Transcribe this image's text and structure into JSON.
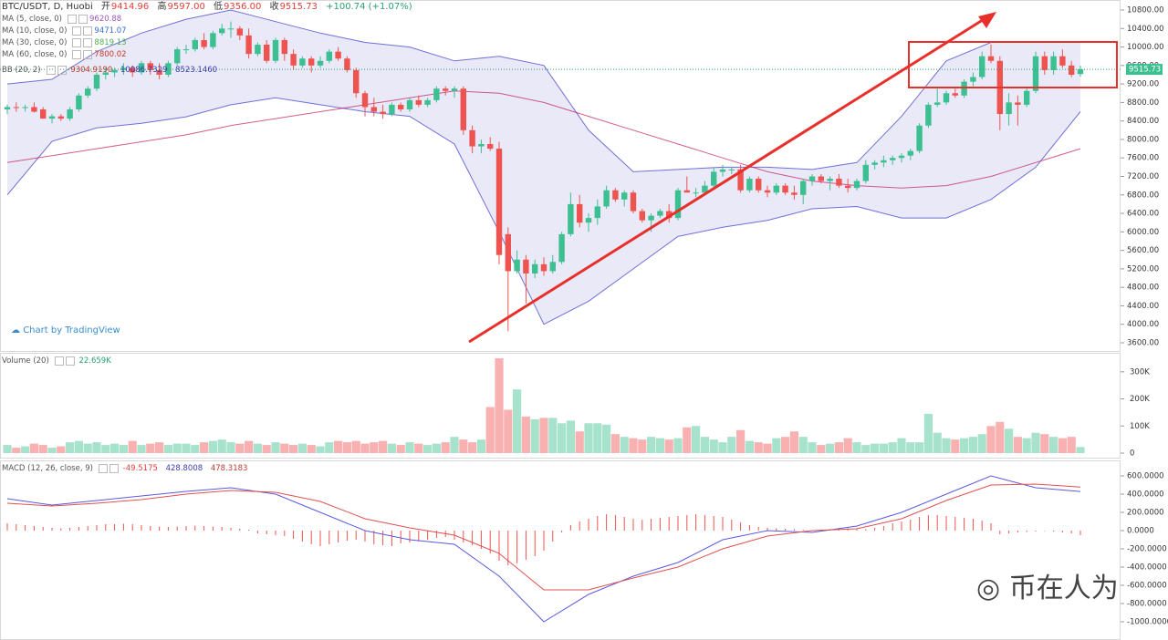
{
  "chart_data": {
    "type": "candlestick",
    "title": "BTC/USDT, D, Huobi",
    "ohlc_header": {
      "open_label": "开",
      "open": "9414.96",
      "high_label": "高",
      "high": "9597.00",
      "low_label": "低",
      "low": "9356.00",
      "close_label": "收",
      "close": "9515.73",
      "change": "+100.74 (+1.07%)"
    },
    "legend": [
      {
        "name": "MA (5, close, 0)",
        "value": "9620.88",
        "color": "#9b59b6"
      },
      {
        "name": "MA (10, close, 0)",
        "value": "9471.07",
        "color": "#3b6fd6"
      },
      {
        "name": "MA (30, close, 0)",
        "value": "8819.13",
        "color": "#4caf50"
      },
      {
        "name": "MA (60, close, 0)",
        "value": "7800.02",
        "color": "#c0392b"
      }
    ],
    "bb_legend": {
      "name": "BB (20, 2)",
      "basis": "9304.9190",
      "upper": "10086.7329",
      "lower": "8523.1460"
    },
    "watermark_left": "Chart by TradingView",
    "watermark_right": "币在人为",
    "up_color": "#3cbf91",
    "down_color": "#ef5350",
    "ylim": [
      3600,
      10800
    ],
    "yticks": [
      {
        "value": 3600,
        "label": "3600.00"
      },
      {
        "value": 4000,
        "label": "4000.00"
      },
      {
        "value": 4400,
        "label": "4400.00"
      },
      {
        "value": 4800,
        "label": "4800.00"
      },
      {
        "value": 5200,
        "label": "5200.00"
      },
      {
        "value": 5600,
        "label": "5600.00"
      },
      {
        "value": 6000,
        "label": "6000.00"
      },
      {
        "value": 6400,
        "label": "6400.00"
      },
      {
        "value": 6800,
        "label": "6800.00"
      },
      {
        "value": 7200,
        "label": "7200.00"
      },
      {
        "value": 7600,
        "label": "7600.00"
      },
      {
        "value": 8000,
        "label": "8000.00"
      },
      {
        "value": 8400,
        "label": "8400.00"
      },
      {
        "value": 8800,
        "label": "8800.00"
      },
      {
        "value": 9200,
        "label": "9200.00"
      },
      {
        "value": 9600,
        "label": "9600.00"
      },
      {
        "value": 10000,
        "label": "10000.00"
      },
      {
        "value": 10400,
        "label": "10400.00"
      },
      {
        "value": 10800,
        "label": "10800.00"
      }
    ],
    "last_price": {
      "value": 9515.73,
      "label": "9515.73"
    },
    "candles": [
      [
        8650,
        8750,
        8550,
        8700
      ],
      [
        8700,
        8800,
        8600,
        8680
      ],
      [
        8680,
        8750,
        8600,
        8700
      ],
      [
        8700,
        8800,
        8580,
        8600
      ],
      [
        8650,
        8700,
        8450,
        8450
      ],
      [
        8450,
        8550,
        8350,
        8500
      ],
      [
        8500,
        8550,
        8400,
        8450
      ],
      [
        8450,
        8700,
        8400,
        8650
      ],
      [
        8650,
        9000,
        8600,
        8950
      ],
      [
        8950,
        9150,
        8900,
        9100
      ],
      [
        9100,
        9450,
        9050,
        9400
      ],
      [
        9400,
        9550,
        9300,
        9450
      ],
      [
        9450,
        9550,
        9350,
        9500
      ],
      [
        9500,
        9650,
        9400,
        9550
      ],
      [
        9550,
        9600,
        9350,
        9450
      ],
      [
        9450,
        9700,
        9400,
        9650
      ],
      [
        9650,
        9700,
        9400,
        9500
      ],
      [
        9500,
        9650,
        9300,
        9400
      ],
      [
        9400,
        9700,
        9350,
        9650
      ],
      [
        9650,
        10000,
        9600,
        9950
      ],
      [
        9950,
        10050,
        9850,
        9950
      ],
      [
        9950,
        10200,
        9900,
        10150
      ],
      [
        10150,
        10300,
        9950,
        10000
      ],
      [
        10000,
        10350,
        9950,
        10300
      ],
      [
        10300,
        10500,
        10250,
        10400
      ],
      [
        10400,
        10550,
        10200,
        10400
      ],
      [
        10400,
        10450,
        10150,
        10250
      ],
      [
        10250,
        10400,
        9750,
        9850
      ],
      [
        9850,
        10100,
        9800,
        10050
      ],
      [
        10050,
        10150,
        9650,
        9700
      ],
      [
        9700,
        10200,
        9650,
        10150
      ],
      [
        10150,
        10200,
        9700,
        9850
      ],
      [
        9850,
        9950,
        9500,
        9600
      ],
      [
        9600,
        9800,
        9550,
        9750
      ],
      [
        9750,
        9800,
        9450,
        9600
      ],
      [
        9600,
        9800,
        9550,
        9700
      ],
      [
        9700,
        9950,
        9650,
        9900
      ],
      [
        9900,
        10000,
        9700,
        9750
      ],
      [
        9750,
        9800,
        9450,
        9500
      ],
      [
        9500,
        9550,
        8900,
        9000
      ],
      [
        9000,
        9050,
        8500,
        8700
      ],
      [
        8700,
        8900,
        8500,
        8600
      ],
      [
        8600,
        8750,
        8450,
        8550
      ],
      [
        8550,
        8800,
        8500,
        8750
      ],
      [
        8750,
        8800,
        8600,
        8650
      ],
      [
        8650,
        8900,
        8600,
        8850
      ],
      [
        8850,
        8950,
        8700,
        8750
      ],
      [
        8750,
        8900,
        8700,
        8850
      ],
      [
        8850,
        9150,
        8800,
        9100
      ],
      [
        9100,
        9150,
        8950,
        9050
      ],
      [
        9050,
        9150,
        8900,
        9100
      ],
      [
        9100,
        9150,
        8100,
        8200
      ],
      [
        8200,
        8300,
        7700,
        7850
      ],
      [
        7850,
        8000,
        7700,
        7900
      ],
      [
        7900,
        8050,
        7750,
        7800
      ],
      [
        7800,
        7950,
        5300,
        5500
      ],
      [
        5950,
        6100,
        3850,
        5150
      ],
      [
        5150,
        5600,
        5100,
        5400
      ],
      [
        5400,
        5500,
        4450,
        5100
      ],
      [
        5100,
        5400,
        5000,
        5300
      ],
      [
        5300,
        5450,
        5050,
        5150
      ],
      [
        5150,
        5500,
        5100,
        5350
      ],
      [
        5350,
        6000,
        5300,
        5950
      ],
      [
        5950,
        6850,
        5900,
        6600
      ],
      [
        6600,
        6800,
        6100,
        6200
      ],
      [
        6200,
        6400,
        6000,
        6300
      ],
      [
        6300,
        6700,
        6150,
        6550
      ],
      [
        6550,
        7000,
        6500,
        6900
      ],
      [
        6900,
        6950,
        6650,
        6700
      ],
      [
        6700,
        6900,
        6550,
        6850
      ],
      [
        6850,
        6900,
        6400,
        6450
      ],
      [
        6450,
        6500,
        6200,
        6250
      ],
      [
        6250,
        6400,
        6000,
        6350
      ],
      [
        6350,
        6500,
        6300,
        6450
      ],
      [
        6450,
        6600,
        6200,
        6300
      ],
      [
        6300,
        6950,
        6250,
        6900
      ],
      [
        6900,
        7200,
        6850,
        6850
      ],
      [
        6850,
        6950,
        6750,
        6850
      ],
      [
        6850,
        7100,
        6800,
        7000
      ],
      [
        7000,
        7400,
        6950,
        7300
      ],
      [
        7300,
        7450,
        7200,
        7350
      ],
      [
        7350,
        7400,
        7250,
        7350
      ],
      [
        7350,
        7450,
        6850,
        6900
      ],
      [
        6900,
        7200,
        6850,
        7150
      ],
      [
        7150,
        7200,
        6850,
        6900
      ],
      [
        6900,
        7000,
        6750,
        6850
      ],
      [
        6850,
        7050,
        6800,
        7000
      ],
      [
        7000,
        7050,
        6800,
        6850
      ],
      [
        6850,
        7000,
        6700,
        6800
      ],
      [
        6800,
        7150,
        6600,
        7100
      ],
      [
        7100,
        7250,
        7000,
        7200
      ],
      [
        7200,
        7250,
        7050,
        7100
      ],
      [
        7100,
        7200,
        6900,
        7150
      ],
      [
        7150,
        7250,
        6950,
        7000
      ],
      [
        7000,
        7150,
        6850,
        6950
      ],
      [
        6950,
        7150,
        6900,
        7100
      ],
      [
        7100,
        7550,
        7050,
        7450
      ],
      [
        7450,
        7550,
        7350,
        7500
      ],
      [
        7500,
        7650,
        7400,
        7550
      ],
      [
        7550,
        7650,
        7450,
        7600
      ],
      [
        7600,
        7700,
        7500,
        7650
      ],
      [
        7650,
        7800,
        7550,
        7750
      ],
      [
        7750,
        8350,
        7700,
        8300
      ],
      [
        8300,
        8800,
        8250,
        8750
      ],
      [
        8750,
        9100,
        8700,
        8800
      ],
      [
        8800,
        9050,
        8750,
        9000
      ],
      [
        9000,
        9100,
        8900,
        8950
      ],
      [
        8950,
        9300,
        8900,
        9250
      ],
      [
        9250,
        9450,
        9150,
        9350
      ],
      [
        9350,
        9900,
        9300,
        9800
      ],
      [
        9800,
        10050,
        9650,
        9700
      ],
      [
        9700,
        9800,
        8200,
        8550
      ],
      [
        8550,
        9000,
        8300,
        8800
      ],
      [
        8800,
        8950,
        8300,
        8750
      ],
      [
        8750,
        9100,
        8700,
        9050
      ],
      [
        9050,
        9900,
        9000,
        9800
      ],
      [
        9800,
        9900,
        9400,
        9500
      ],
      [
        9500,
        9900,
        9400,
        9800
      ],
      [
        9800,
        9950,
        9550,
        9600
      ],
      [
        9600,
        9700,
        9350,
        9400
      ],
      [
        9414.96,
        9597.0,
        9356.0,
        9515.73
      ]
    ],
    "bb_upper": [
      9200,
      9300,
      9900,
      10300,
      10600,
      10800,
      10550,
      10300,
      10100,
      10000,
      9700,
      9800,
      9600,
      8200,
      7300,
      7350,
      7400,
      7400,
      7350,
      7500,
      8500,
      9700,
      10100,
      10100,
      10100
    ],
    "bb_lower": [
      6800,
      7960,
      8250,
      8350,
      8490,
      8750,
      8900,
      8750,
      8600,
      8500,
      7900,
      6000,
      4000,
      4500,
      5200,
      5900,
      6100,
      6250,
      6500,
      6550,
      6300,
      6300,
      6700,
      7400,
      8600
    ],
    "ma60": [
      7500,
      7650,
      7800,
      7950,
      8100,
      8300,
      8450,
      8600,
      8750,
      8900,
      9050,
      9000,
      8800,
      8500,
      8200,
      7900,
      7600,
      7300,
      7100,
      7000,
      6950,
      7000,
      7200,
      7500,
      7800
    ],
    "volume_title": "Volume (20)",
    "volume_last": "22.659K",
    "volume_ylim": [
      0,
      360
    ],
    "volume_yticks": [
      0,
      {
        "value": 100,
        "label": "100K"
      },
      {
        "value": 200,
        "label": "200K"
      },
      {
        "value": 300,
        "label": "300K"
      }
    ],
    "volume": [
      30,
      20,
      25,
      35,
      30,
      20,
      25,
      40,
      45,
      35,
      40,
      30,
      35,
      30,
      45,
      30,
      35,
      40,
      30,
      35,
      35,
      30,
      40,
      45,
      50,
      40,
      35,
      45,
      35,
      30,
      40,
      35,
      30,
      35,
      30,
      25,
      40,
      45,
      40,
      45,
      35,
      40,
      45,
      35,
      30,
      40,
      35,
      30,
      35,
      40,
      60,
      50,
      40,
      50,
      170,
      350,
      160,
      235,
      135,
      125,
      130,
      130,
      110,
      120,
      80,
      110,
      110,
      105,
      70,
      60,
      55,
      50,
      60,
      55,
      50,
      55,
      95,
      100,
      60,
      50,
      40,
      60,
      85,
      45,
      40,
      35,
      55,
      60,
      80,
      60,
      40,
      30,
      35,
      40,
      55,
      40,
      30,
      35,
      35,
      40,
      55,
      40,
      40,
      145,
      75,
      55,
      50,
      55,
      60,
      70,
      100,
      115,
      90,
      60,
      55,
      75,
      70,
      60,
      55,
      60,
      22.659
    ],
    "macd_title": "MACD (12, 26, close, 9)",
    "macd_values": [
      "-49.5175",
      "428.8008",
      "478.3183"
    ],
    "macd_ylim": [
      -1100,
      700
    ],
    "macd_yticks": [
      {
        "value": 600,
        "label": "600.0000"
      },
      {
        "value": 400,
        "label": "400.0000"
      },
      {
        "value": 200,
        "label": "200.0000"
      },
      {
        "value": 0,
        "label": "0.0000"
      },
      {
        "value": -200,
        "label": "-200.0000"
      },
      {
        "value": -400,
        "label": "-400.0000"
      },
      {
        "value": -600,
        "label": "-600.0000"
      },
      {
        "value": -800,
        "label": "-800.0000"
      },
      {
        "value": -1000,
        "label": "-1000.0000"
      }
    ],
    "macd_hist": [
      80,
      70,
      60,
      50,
      40,
      30,
      25,
      30,
      40,
      50,
      60,
      70,
      70,
      75,
      70,
      60,
      50,
      45,
      40,
      45,
      50,
      55,
      50,
      45,
      40,
      30,
      20,
      10,
      -30,
      -40,
      -50,
      -60,
      -90,
      -120,
      -150,
      -170,
      -150,
      -130,
      -110,
      -100,
      -120,
      -150,
      -160,
      -170,
      -140,
      -130,
      -120,
      -100,
      -80,
      -70,
      -100,
      -130,
      -160,
      -200,
      -250,
      -330,
      -380,
      -360,
      -320,
      -280,
      -220,
      -120,
      -20,
      60,
      100,
      130,
      160,
      180,
      170,
      150,
      130,
      120,
      130,
      140,
      150,
      160,
      170,
      180,
      170,
      160,
      150,
      120,
      90,
      60,
      40,
      30,
      25,
      20,
      15,
      10,
      5,
      10,
      15,
      20,
      25,
      20,
      15,
      30,
      50,
      80,
      100,
      120,
      150,
      170,
      170,
      160,
      150,
      140,
      130,
      110,
      80,
      -40,
      -30,
      -20,
      -15,
      -10,
      -5,
      -10,
      -20,
      -30,
      -49.5175
    ],
    "macd_line": [
      350,
      280,
      330,
      380,
      430,
      470,
      400,
      200,
      0,
      -100,
      -150,
      -500,
      -1000,
      -700,
      -500,
      -350,
      -100,
      0,
      -20,
      50,
      200,
      400,
      600,
      470,
      428.8008
    ],
    "signal_line": [
      300,
      270,
      300,
      340,
      400,
      440,
      420,
      320,
      130,
      30,
      -50,
      -250,
      -650,
      -650,
      -520,
      -400,
      -200,
      -60,
      0,
      20,
      130,
      330,
      500,
      510,
      478.3183
    ]
  }
}
